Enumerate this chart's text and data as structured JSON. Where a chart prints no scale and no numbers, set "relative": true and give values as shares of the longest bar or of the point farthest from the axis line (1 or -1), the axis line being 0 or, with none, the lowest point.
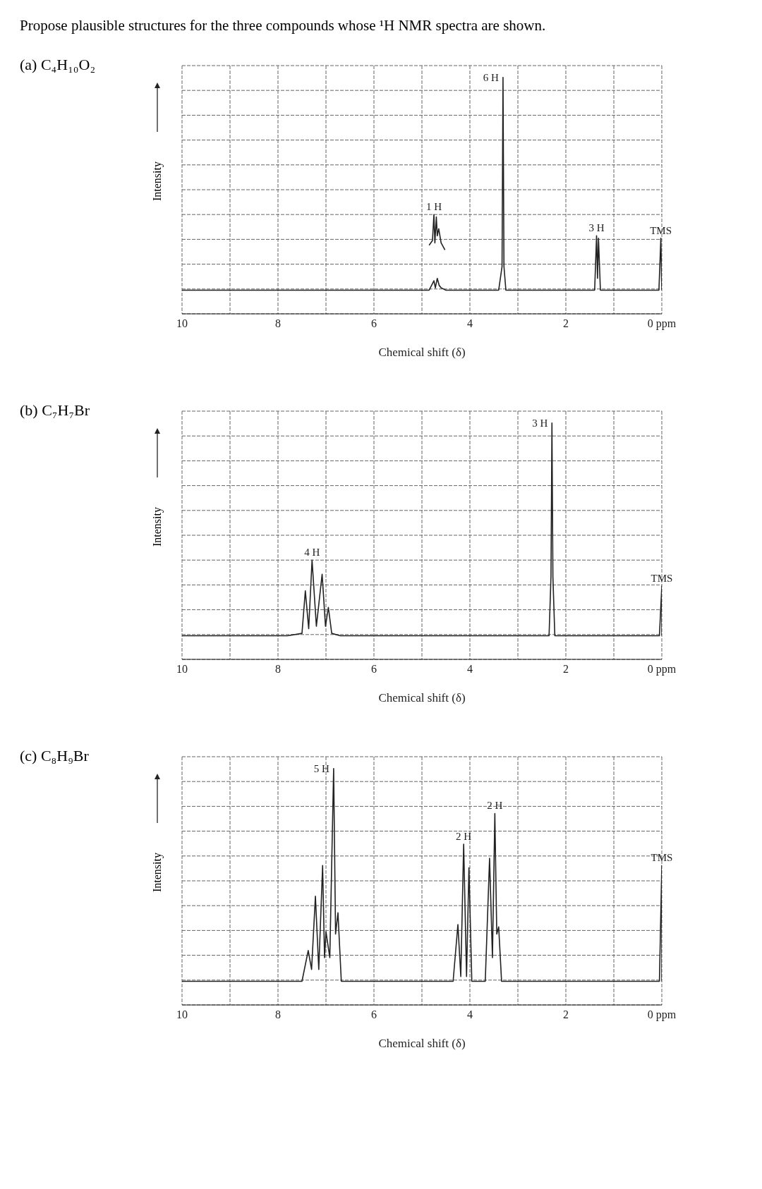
{
  "chart_data": [
    {
      "type": "line",
      "title": "Propose plausible structures for the three compounds whose ¹H NMR spectra are shown.",
      "subtitle": "(a) C₄H₁₀O₂",
      "xlabel": "Chemical shift (δ)",
      "ylabel": "Intensity",
      "relative": true,
      "xlim": [
        10,
        0
      ],
      "xticks": [
        10,
        {
          "value": 9,
          "label": null
        },
        8,
        {
          "value": 7,
          "label": null
        },
        6,
        {
          "value": 5,
          "label": null
        },
        4,
        {
          "value": 3,
          "label": null
        },
        2,
        {
          "value": 1,
          "label": null
        },
        {
          "value": 0,
          "label": "0 ppm"
        }
      ],
      "grid": true,
      "series": [
        {
          "color": "#222222",
          "x": [
            10,
            5.0,
            4.85,
            4.8,
            4.75,
            4.72,
            4.68,
            4.64,
            4.6,
            4.5,
            3.4,
            3.33,
            3.31,
            3.29,
            3.25,
            1.4,
            1.36,
            1.34,
            1.32,
            1.28,
            0.06,
            0.02,
            0
          ],
          "values": [
            0.1,
            0.1,
            0.1,
            0.12,
            0.14,
            0.11,
            0.15,
            0.12,
            0.11,
            0.1,
            0.1,
            0.2,
            1,
            0.2,
            0.1,
            0.1,
            0.33,
            0.15,
            0.32,
            0.1,
            0.1,
            0.32,
            0.1
          ]
        },
        {
          "color": "#222222",
          "x": [
            4.85,
            4.78,
            4.75,
            4.73,
            4.7,
            4.68,
            4.65,
            4.6,
            4.52
          ],
          "values": [
            0.29,
            0.31,
            0.42,
            0.3,
            0.41,
            0.33,
            0.36,
            0.3,
            0.27
          ]
        }
      ],
      "annotations": [
        {
          "text": "6 H",
          "x": 3.31,
          "y": 1
        },
        {
          "text": "1 H",
          "x": 4.75,
          "y": 0.42
        },
        {
          "text": "3 H",
          "x": 1.36,
          "y": 0.33
        },
        {
          "text": "TMS",
          "x": 0.02,
          "y": 0.32
        }
      ]
    },
    {
      "type": "line",
      "title": "(b) C₇H₇Br",
      "xlabel": "Chemical shift (δ)",
      "ylabel": "Intensity",
      "relative": true,
      "xlim": [
        10,
        0
      ],
      "xticks": [
        10,
        {
          "value": 9,
          "label": null
        },
        8,
        {
          "value": 7,
          "label": null
        },
        6,
        {
          "value": 5,
          "label": null
        },
        4,
        {
          "value": 3,
          "label": null
        },
        2,
        {
          "value": 1,
          "label": null
        },
        {
          "value": 0,
          "label": "0 ppm"
        }
      ],
      "grid": true,
      "series": [
        {
          "color": "#222222",
          "x": [
            10,
            7.8,
            7.5,
            7.43,
            7.36,
            7.29,
            7.2,
            7.08,
            7.01,
            6.95,
            6.88,
            6.7,
            2.35,
            2.31,
            2.29,
            2.27,
            2.23,
            0.05,
            0,
            -0.0
          ],
          "values": [
            0.1,
            0.1,
            0.11,
            0.29,
            0.13,
            0.42,
            0.14,
            0.36,
            0.14,
            0.22,
            0.11,
            0.1,
            0.1,
            0.35,
            1,
            0.35,
            0.1,
            0.1,
            0.31,
            0.1
          ]
        }
      ],
      "annotations": [
        {
          "text": "4 H",
          "x": 7.29,
          "y": 0.42
        },
        {
          "text": "3 H",
          "x": 2.29,
          "y": 1
        },
        {
          "text": "TMS",
          "x": 0,
          "y": 0.31
        }
      ]
    },
    {
      "type": "line",
      "title": "(c) C₈H₉Br",
      "xlabel": "Chemical shift (δ)",
      "ylabel": "Intensity",
      "relative": true,
      "xlim": [
        10,
        0
      ],
      "xticks": [
        10,
        {
          "value": 9,
          "label": null
        },
        8,
        {
          "value": 7,
          "label": null
        },
        6,
        {
          "value": 5,
          "label": null
        },
        4,
        {
          "value": 3,
          "label": null
        },
        2,
        {
          "value": 1,
          "label": null
        },
        {
          "value": 0,
          "label": "0 ppm"
        }
      ],
      "grid": true,
      "series": [
        {
          "color": "#222222",
          "x": [
            10,
            7.5,
            7.37,
            7.3,
            7.22,
            7.15,
            7.07,
            7.03,
            7.0,
            6.92,
            6.84,
            6.8,
            6.75,
            6.68,
            4.35,
            4.25,
            4.19,
            4.13,
            4.07,
            4.02,
            3.96,
            3.68,
            3.59,
            3.53,
            3.48,
            3.44,
            3.4,
            3.34,
            0.05,
            0,
            -0.0
          ],
          "values": [
            0.1,
            0.1,
            0.23,
            0.15,
            0.46,
            0.15,
            0.59,
            0.2,
            0.31,
            0.2,
            1,
            0.3,
            0.39,
            0.1,
            0.1,
            0.34,
            0.12,
            0.68,
            0.12,
            0.58,
            0.1,
            0.1,
            0.62,
            0.2,
            0.81,
            0.3,
            0.33,
            0.1,
            0.1,
            0.59,
            0.1
          ]
        }
      ],
      "annotations": [
        {
          "text": "5 H",
          "x": 6.84,
          "y": 1
        },
        {
          "text": "2 H",
          "x": 4.13,
          "y": 0.68
        },
        {
          "text": "2 H",
          "x": 3.48,
          "y": 0.81
        },
        {
          "text": "TMS",
          "x": 0,
          "y": 0.59
        }
      ]
    }
  ]
}
